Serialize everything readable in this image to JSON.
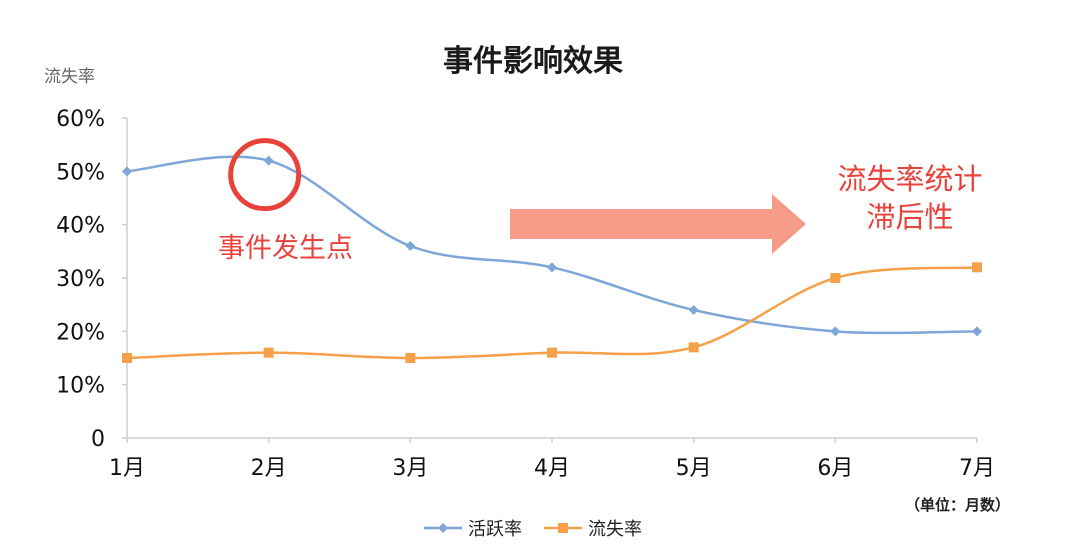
{
  "chart_data": {
    "type": "line",
    "title": "事件影响效果",
    "ylabel": "流失率",
    "unit_note": "（单位：月数）",
    "categories": [
      "1月",
      "2月",
      "3月",
      "4月",
      "5月",
      "6月",
      "7月"
    ],
    "yticks": [
      "0",
      "10%",
      "20%",
      "30%",
      "40%",
      "50%",
      "60%"
    ],
    "ylim": [
      0,
      60
    ],
    "series": [
      {
        "name": "活跃率",
        "color": "#7ea6d8",
        "marker": "diamond",
        "values": [
          50,
          52,
          36,
          32,
          24,
          20,
          20
        ]
      },
      {
        "name": "流失率",
        "color": "#f5a04a",
        "marker": "square",
        "values": [
          15,
          16,
          15,
          16,
          17,
          30,
          32
        ]
      }
    ],
    "annotations": {
      "event_label": "事件发生点",
      "lag_label": [
        "流失率统计",
        "滞后性"
      ],
      "highlight_color": "#e8433b",
      "arrow_color": "#f4907a"
    },
    "grid": false,
    "legend_position": "bottom"
  }
}
